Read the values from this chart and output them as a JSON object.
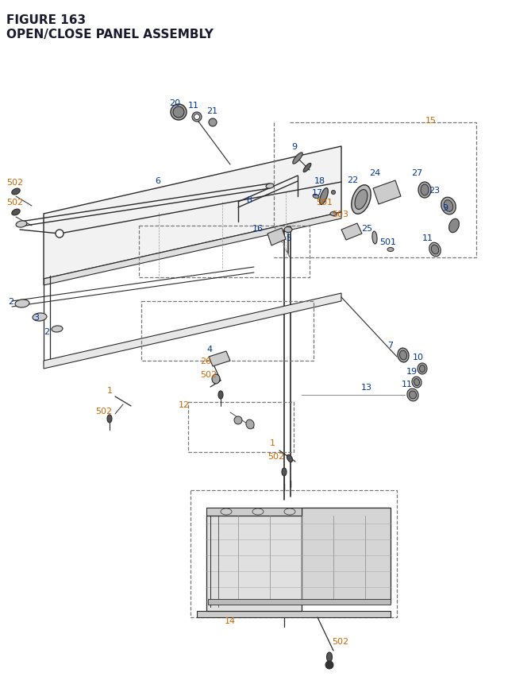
{
  "title_line1": "FIGURE 163",
  "title_line2": "OPEN/CLOSE PANEL ASSEMBLY",
  "title_color": "#1a1a2e",
  "title_fontsize": 11,
  "bg_color": "#ffffff",
  "orange": "#cc6600",
  "blue": "#003399",
  "dark": "#2a2a2a",
  "gray": "#666666"
}
